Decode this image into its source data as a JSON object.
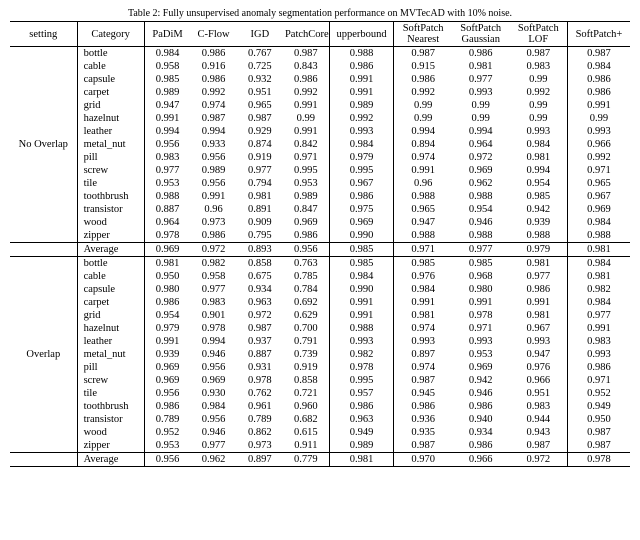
{
  "caption": "Table 2: Fully unsupervised anomaly segmentation performance on MVTecAD with 10% noise.",
  "headers": {
    "setting": "setting",
    "category": "Category",
    "padim": "PaDiM",
    "cflow": "C-Flow",
    "igd": "IGD",
    "patchcore": "PatchCore",
    "upperbound": "upperbound",
    "sp_nearest_a": "SoftPatch",
    "sp_nearest_b": "Nearest",
    "sp_gauss_a": "SoftPatch",
    "sp_gauss_b": "Gaussian",
    "sp_lof_a": "SoftPatch",
    "sp_lof_b": "LOF",
    "spp": "SoftPatch+"
  },
  "groups": [
    {
      "setting": "No Overlap",
      "rows": [
        {
          "cat": "bottle",
          "v": [
            "0.984",
            "0.986",
            "0.767",
            "0.987",
            "0.988",
            "0.987",
            "0.986",
            "0.987",
            "0.987"
          ]
        },
        {
          "cat": "cable",
          "v": [
            "0.958",
            "0.916",
            "0.725",
            "0.843",
            "0.986",
            "0.915",
            "0.981",
            "0.983",
            "0.984"
          ]
        },
        {
          "cat": "capsule",
          "v": [
            "0.985",
            "0.986",
            "0.932",
            "0.986",
            "0.991",
            "0.986",
            "0.977",
            "0.99",
            "0.986"
          ]
        },
        {
          "cat": "carpet",
          "v": [
            "0.989",
            "0.992",
            "0.951",
            "0.992",
            "0.991",
            "0.992",
            "0.993",
            "0.992",
            "0.986"
          ]
        },
        {
          "cat": "grid",
          "v": [
            "0.947",
            "0.974",
            "0.965",
            "0.991",
            "0.989",
            "0.99",
            "0.99",
            "0.99",
            "0.991"
          ]
        },
        {
          "cat": "hazelnut",
          "v": [
            "0.991",
            "0.987",
            "0.987",
            "0.99",
            "0.992",
            "0.99",
            "0.99",
            "0.99",
            "0.99"
          ]
        },
        {
          "cat": "leather",
          "v": [
            "0.994",
            "0.994",
            "0.929",
            "0.991",
            "0.993",
            "0.994",
            "0.994",
            "0.993",
            "0.993"
          ]
        },
        {
          "cat": "metal_nut",
          "v": [
            "0.956",
            "0.933",
            "0.874",
            "0.842",
            "0.984",
            "0.894",
            "0.964",
            "0.984",
            "0.966"
          ]
        },
        {
          "cat": "pill",
          "v": [
            "0.983",
            "0.956",
            "0.919",
            "0.971",
            "0.979",
            "0.974",
            "0.972",
            "0.981",
            "0.992"
          ]
        },
        {
          "cat": "screw",
          "v": [
            "0.977",
            "0.989",
            "0.977",
            "0.995",
            "0.995",
            "0.991",
            "0.969",
            "0.994",
            "0.971"
          ]
        },
        {
          "cat": "tile",
          "v": [
            "0.953",
            "0.956",
            "0.794",
            "0.953",
            "0.967",
            "0.96",
            "0.962",
            "0.954",
            "0.965"
          ]
        },
        {
          "cat": "toothbrush",
          "v": [
            "0.988",
            "0.991",
            "0.981",
            "0.989",
            "0.986",
            "0.988",
            "0.988",
            "0.985",
            "0.967"
          ]
        },
        {
          "cat": "transistor",
          "v": [
            "0.887",
            "0.96",
            "0.891",
            "0.847",
            "0.975",
            "0.965",
            "0.954",
            "0.942",
            "0.969"
          ]
        },
        {
          "cat": "wood",
          "v": [
            "0.964",
            "0.973",
            "0.909",
            "0.969",
            "0.969",
            "0.947",
            "0.946",
            "0.939",
            "0.984"
          ]
        },
        {
          "cat": "zipper",
          "v": [
            "0.978",
            "0.986",
            "0.795",
            "0.986",
            "0.990",
            "0.988",
            "0.988",
            "0.988",
            "0.988"
          ]
        }
      ],
      "avg": {
        "cat": "Average",
        "v": [
          "0.969",
          "0.972",
          "0.893",
          "0.956",
          "0.985",
          "0.971",
          "0.977",
          "0.979",
          "0.981"
        ]
      }
    },
    {
      "setting": "Overlap",
      "rows": [
        {
          "cat": "bottle",
          "v": [
            "0.981",
            "0.982",
            "0.858",
            "0.763",
            "0.985",
            "0.985",
            "0.985",
            "0.981",
            "0.984"
          ]
        },
        {
          "cat": "cable",
          "v": [
            "0.950",
            "0.958",
            "0.675",
            "0.785",
            "0.984",
            "0.976",
            "0.968",
            "0.977",
            "0.981"
          ]
        },
        {
          "cat": "capsule",
          "v": [
            "0.980",
            "0.977",
            "0.934",
            "0.784",
            "0.990",
            "0.984",
            "0.980",
            "0.986",
            "0.982"
          ]
        },
        {
          "cat": "carpet",
          "v": [
            "0.986",
            "0.983",
            "0.963",
            "0.692",
            "0.991",
            "0.991",
            "0.991",
            "0.991",
            "0.984"
          ]
        },
        {
          "cat": "grid",
          "v": [
            "0.954",
            "0.901",
            "0.972",
            "0.629",
            "0.991",
            "0.981",
            "0.978",
            "0.981",
            "0.977"
          ]
        },
        {
          "cat": "hazelnut",
          "v": [
            "0.979",
            "0.978",
            "0.987",
            "0.700",
            "0.988",
            "0.974",
            "0.971",
            "0.967",
            "0.991"
          ]
        },
        {
          "cat": "leather",
          "v": [
            "0.991",
            "0.994",
            "0.937",
            "0.791",
            "0.993",
            "0.993",
            "0.993",
            "0.993",
            "0.983"
          ]
        },
        {
          "cat": "metal_nut",
          "v": [
            "0.939",
            "0.946",
            "0.887",
            "0.739",
            "0.982",
            "0.897",
            "0.953",
            "0.947",
            "0.993"
          ]
        },
        {
          "cat": "pill",
          "v": [
            "0.969",
            "0.956",
            "0.931",
            "0.919",
            "0.978",
            "0.974",
            "0.969",
            "0.976",
            "0.986"
          ]
        },
        {
          "cat": "screw",
          "v": [
            "0.969",
            "0.969",
            "0.978",
            "0.858",
            "0.995",
            "0.987",
            "0.942",
            "0.966",
            "0.971"
          ]
        },
        {
          "cat": "tile",
          "v": [
            "0.956",
            "0.930",
            "0.762",
            "0.721",
            "0.957",
            "0.945",
            "0.946",
            "0.951",
            "0.952"
          ]
        },
        {
          "cat": "toothbrush",
          "v": [
            "0.986",
            "0.984",
            "0.961",
            "0.960",
            "0.986",
            "0.986",
            "0.986",
            "0.983",
            "0.949"
          ]
        },
        {
          "cat": "transistor",
          "v": [
            "0.789",
            "0.956",
            "0.789",
            "0.682",
            "0.963",
            "0.936",
            "0.940",
            "0.944",
            "0.950"
          ]
        },
        {
          "cat": "wood",
          "v": [
            "0.952",
            "0.946",
            "0.862",
            "0.615",
            "0.949",
            "0.935",
            "0.934",
            "0.943",
            "0.987"
          ]
        },
        {
          "cat": "zipper",
          "v": [
            "0.953",
            "0.977",
            "0.973",
            "0.911",
            "0.989",
            "0.987",
            "0.986",
            "0.987",
            "0.987"
          ]
        }
      ],
      "avg": {
        "cat": "Average",
        "v": [
          "0.956",
          "0.962",
          "0.897",
          "0.779",
          "0.981",
          "0.970",
          "0.966",
          "0.972",
          "0.978"
        ]
      }
    }
  ]
}
